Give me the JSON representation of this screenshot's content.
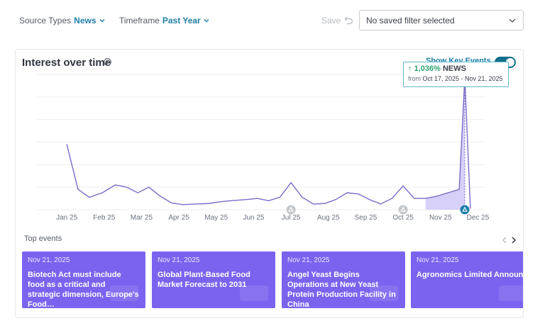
{
  "filters": {
    "source_label": "Source Types",
    "source_value": "News",
    "timeframe_label": "Timeframe",
    "timeframe_value": "Past Year",
    "save_label": "Save",
    "saved_filter_value": "No saved filter selected"
  },
  "card": {
    "title": "Interest over time",
    "key_events_label": "Show Key Events",
    "key_events_enabled": true,
    "tooltip": {
      "change": "1,036%",
      "source": "NEWS",
      "from_label": "from",
      "range": "Oct 17, 2025 - Nov 21, 2025"
    },
    "top_events_label": "Top events"
  },
  "colors": {
    "accent_teal": "#1f7fa8",
    "event_purple": "#7b63ef",
    "line_purple": "#7a6cc8",
    "positive_green": "#27a36b"
  },
  "chart_data": {
    "type": "line",
    "title": "Interest over time",
    "x_ticks": [
      "Jan 25",
      "Feb 25",
      "Mar 25",
      "Apr 25",
      "May 25",
      "Jun 25",
      "Jul 25",
      "Aug 25",
      "Sep 25",
      "Oct 25",
      "Nov 25",
      "Dec 25"
    ],
    "x": [
      0,
      0.3,
      0.6,
      0.95,
      1.3,
      1.6,
      1.9,
      2.2,
      2.5,
      2.8,
      3.1,
      3.4,
      3.8,
      4.1,
      4.4,
      4.8,
      5.1,
      5.4,
      5.7,
      6.0,
      6.3,
      6.6,
      6.9,
      7.2,
      7.5,
      7.8,
      8.1,
      8.4,
      8.7,
      9.0,
      9.3,
      9.6,
      9.9,
      10.2,
      10.5,
      10.65,
      10.8
    ],
    "values": [
      5.8,
      1.8,
      1.1,
      1.5,
      2.2,
      2.0,
      1.5,
      2.0,
      1.2,
      0.6,
      0.45,
      0.5,
      0.55,
      0.7,
      0.8,
      0.9,
      1.0,
      0.8,
      1.1,
      2.4,
      1.1,
      0.5,
      0.55,
      0.9,
      1.5,
      1.4,
      0.9,
      0.5,
      1.0,
      2.1,
      1.0,
      1.0,
      1.2,
      1.5,
      1.8,
      11.7,
      0.1
    ],
    "ylim": [
      0,
      12
    ],
    "highlight_range": [
      9.6,
      10.65
    ],
    "event_markers_x": [
      6.0,
      9.0,
      10.65
    ],
    "grid": true,
    "legend": "none"
  },
  "events": [
    {
      "date": "Nov 21, 2025",
      "title": "Biotech Act must include food as a critical and strategic dimension, Europe's Food…"
    },
    {
      "date": "Nov 21, 2025",
      "title": "Global Plant-Based Food Market Forecast to 2031"
    },
    {
      "date": "Nov 21, 2025",
      "title": "Angel Yeast Begins Operations at New Yeast Protein Production Facility in China"
    },
    {
      "date": "Nov 21, 2025",
      "title": "Agronomics Limited Announ… Geltor, Inc Update"
    }
  ]
}
